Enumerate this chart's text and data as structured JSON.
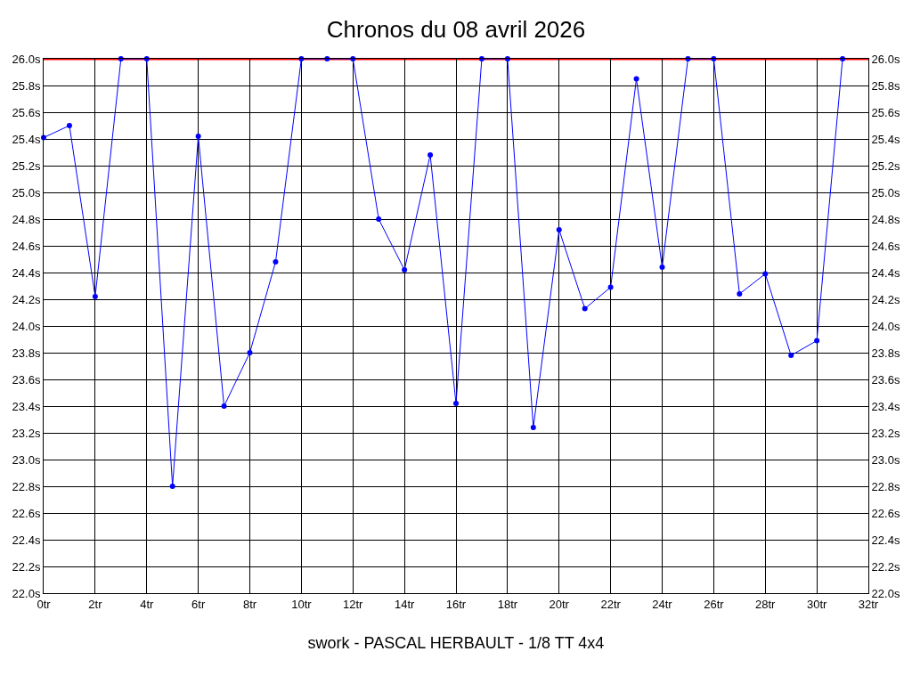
{
  "chart_data": {
    "type": "line",
    "title": "Chronos du 08 avril 2026",
    "xlabel": "swork - PASCAL HERBAULT - 1/8 TT 4x4",
    "x": [
      0,
      1,
      2,
      3,
      4,
      5,
      6,
      7,
      8,
      9,
      10,
      11,
      12,
      13,
      14,
      15,
      16,
      17,
      18,
      19,
      20,
      21,
      22,
      23,
      24,
      25,
      26,
      27,
      28,
      29,
      30,
      31
    ],
    "series": [
      {
        "color": "#0000ff",
        "values": [
          25.41,
          25.5,
          24.22,
          26.0,
          26.0,
          22.8,
          25.42,
          23.4,
          23.8,
          24.48,
          26.0,
          26.0,
          26.0,
          24.8,
          24.42,
          25.28,
          23.42,
          26.0,
          26.0,
          23.24,
          24.72,
          24.13,
          24.29,
          25.85,
          24.44,
          26.0,
          26.0,
          24.24,
          24.39,
          23.78,
          23.89,
          26.0
        ]
      }
    ],
    "xlim": [
      0,
      32
    ],
    "xticks": [
      {
        "value": 0,
        "label": "0tr"
      },
      {
        "value": 2,
        "label": "2tr"
      },
      {
        "value": 4,
        "label": "4tr"
      },
      {
        "value": 6,
        "label": "6tr"
      },
      {
        "value": 8,
        "label": "8tr"
      },
      {
        "value": 10,
        "label": "10tr"
      },
      {
        "value": 12,
        "label": "12tr"
      },
      {
        "value": 14,
        "label": "14tr"
      },
      {
        "value": 16,
        "label": "16tr"
      },
      {
        "value": 18,
        "label": "18tr"
      },
      {
        "value": 20,
        "label": "20tr"
      },
      {
        "value": 22,
        "label": "22tr"
      },
      {
        "value": 24,
        "label": "24tr"
      },
      {
        "value": 26,
        "label": "26tr"
      },
      {
        "value": 28,
        "label": "28tr"
      },
      {
        "value": 30,
        "label": "30tr"
      },
      {
        "value": 32,
        "label": "32tr"
      }
    ],
    "ylim": [
      22,
      26
    ],
    "yticks": [
      {
        "value": 22,
        "label": "22.0s"
      },
      {
        "value": 22.2,
        "label": "22.2s"
      },
      {
        "value": 22.4,
        "label": "22.4s"
      },
      {
        "value": 22.6,
        "label": "22.6s"
      },
      {
        "value": 22.8,
        "label": "22.8s"
      },
      {
        "value": 23,
        "label": "23.0s"
      },
      {
        "value": 23.2,
        "label": "23.2s"
      },
      {
        "value": 23.4,
        "label": "23.4s"
      },
      {
        "value": 23.6,
        "label": "23.6s"
      },
      {
        "value": 23.8,
        "label": "23.8s"
      },
      {
        "value": 24,
        "label": "24.0s"
      },
      {
        "value": 24.2,
        "label": "24.2s"
      },
      {
        "value": 24.4,
        "label": "24.4s"
      },
      {
        "value": 24.6,
        "label": "24.6s"
      },
      {
        "value": 24.8,
        "label": "24.8s"
      },
      {
        "value": 25,
        "label": "25.0s"
      },
      {
        "value": 25.2,
        "label": "25.2s"
      },
      {
        "value": 25.4,
        "label": "25.4s"
      },
      {
        "value": 25.6,
        "label": "25.6s"
      },
      {
        "value": 25.8,
        "label": "25.8s"
      },
      {
        "value": 26,
        "label": "26.0s"
      }
    ],
    "y2lim": [
      22,
      26
    ],
    "y2ticks": [
      {
        "value": 22,
        "label": "22.0s"
      },
      {
        "value": 22.2,
        "label": "22.2s"
      },
      {
        "value": 22.4,
        "label": "22.4s"
      },
      {
        "value": 22.6,
        "label": "22.6s"
      },
      {
        "value": 22.8,
        "label": "22.8s"
      },
      {
        "value": 23,
        "label": "23.0s"
      },
      {
        "value": 23.2,
        "label": "23.2s"
      },
      {
        "value": 23.4,
        "label": "23.4s"
      },
      {
        "value": 23.6,
        "label": "23.6s"
      },
      {
        "value": 23.8,
        "label": "23.8s"
      },
      {
        "value": 24,
        "label": "24.0s"
      },
      {
        "value": 24.2,
        "label": "24.2s"
      },
      {
        "value": 24.4,
        "label": "24.4s"
      },
      {
        "value": 24.6,
        "label": "24.6s"
      },
      {
        "value": 24.8,
        "label": "24.8s"
      },
      {
        "value": 25,
        "label": "25.0s"
      },
      {
        "value": 25.2,
        "label": "25.2s"
      },
      {
        "value": 25.4,
        "label": "25.4s"
      },
      {
        "value": 25.6,
        "label": "25.6s"
      },
      {
        "value": 25.8,
        "label": "25.8s"
      },
      {
        "value": 26,
        "label": "26.0s"
      }
    ],
    "ref_lines": [
      {
        "axis": "y",
        "value": 26,
        "color": "#ff0000"
      }
    ],
    "grid": true,
    "marker": "circle",
    "line_style": "solid"
  }
}
